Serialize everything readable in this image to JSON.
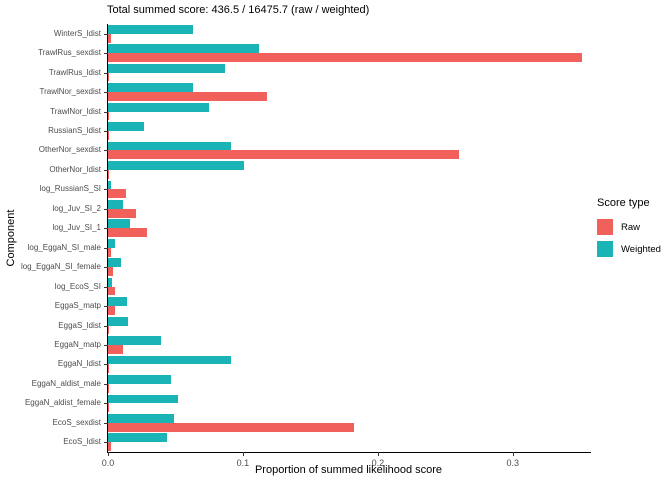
{
  "chart_data": {
    "type": "bar",
    "orientation": "horizontal",
    "title": "Total summed score: 436.5 / 16475.7 (raw / weighted)",
    "xlabel": "Proportion of summed likelihood score",
    "ylabel": "Component",
    "xlim": [
      0,
      0.358
    ],
    "xticks": [
      0,
      0.1,
      0.2,
      0.3
    ],
    "xtick_labels": [
      "0.0",
      "0.1",
      "0.2",
      "0.3"
    ],
    "grid": false,
    "legend": {
      "title": "Score type",
      "position": "right",
      "entries": [
        {
          "label": "Raw",
          "color": "#F2605B"
        },
        {
          "label": "Weighted",
          "color": "#1AB3B6"
        }
      ]
    },
    "categories": [
      "WinterS_ldist",
      "TrawlRus_sexdist",
      "TrawlRus_ldist",
      "TrawlNor_sexdist",
      "TrawlNor_ldist",
      "RussianS_ldist",
      "OtherNor_sexdist",
      "OtherNor_ldist",
      "log_RussianS_SI",
      "log_Juv_SI_2",
      "log_Juv_SI_1",
      "log_EggaN_SI_male",
      "log_EggaN_SI_female",
      "log_EcoS_SI",
      "EggaS_matp",
      "EggaS_ldist",
      "EggaN_matp",
      "EggaN_ldist",
      "EggaN_aldist_male",
      "EggaN_aldist_female",
      "EcoS_sexdist",
      "EcoS_ldist"
    ],
    "series": [
      {
        "name": "Raw",
        "color": "#F2605B",
        "values": [
          0.002,
          0.351,
          0.001,
          0.118,
          0.001,
          0.001,
          0.26,
          0.001,
          0.013,
          0.021,
          0.029,
          0.002,
          0.004,
          0.005,
          0.005,
          0.001,
          0.011,
          0.001,
          0.001,
          0.001,
          0.182,
          0.002
        ]
      },
      {
        "name": "Weighted",
        "color": "#1AB3B6",
        "values": [
          0.063,
          0.112,
          0.087,
          0.063,
          0.075,
          0.027,
          0.091,
          0.101,
          0.002,
          0.011,
          0.016,
          0.005,
          0.01,
          0.003,
          0.014,
          0.015,
          0.039,
          0.091,
          0.047,
          0.052,
          0.049,
          0.044
        ]
      }
    ]
  }
}
